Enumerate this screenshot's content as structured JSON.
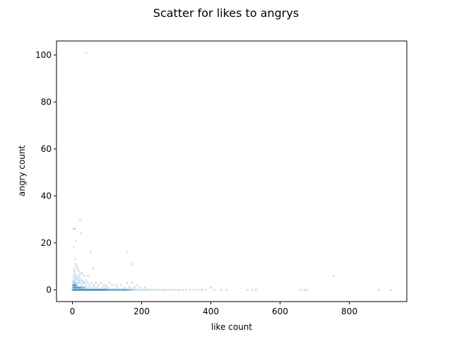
{
  "chart_data": {
    "type": "scatter",
    "title": "Scatter for likes to angrys",
    "xlabel": "like count",
    "ylabel": "angry count",
    "xlim": [
      -46,
      966
    ],
    "ylim": [
      -5,
      106
    ],
    "xticks": [
      0,
      200,
      400,
      600,
      800
    ],
    "yticks": [
      0,
      20,
      40,
      60,
      80,
      100
    ],
    "xtick_labels": [
      "0",
      "200",
      "400",
      "600",
      "800"
    ],
    "ytick_labels": [
      "0",
      "20",
      "40",
      "60",
      "80",
      "100"
    ],
    "grid": false,
    "point_color": "#1f77b4",
    "point_alpha": 0.2,
    "points": [
      [
        40,
        101
      ],
      [
        4,
        26
      ],
      [
        7,
        26
      ],
      [
        22,
        30
      ],
      [
        25,
        24
      ],
      [
        10,
        21
      ],
      [
        4,
        18
      ],
      [
        52,
        16
      ],
      [
        158,
        16
      ],
      [
        170,
        11
      ],
      [
        8,
        13
      ],
      [
        9,
        11
      ],
      [
        12,
        10
      ],
      [
        15,
        9
      ],
      [
        18,
        8
      ],
      [
        22,
        7
      ],
      [
        28,
        7
      ],
      [
        34,
        6
      ],
      [
        45,
        6
      ],
      [
        60,
        9
      ],
      [
        5,
        9
      ],
      [
        6,
        8
      ],
      [
        7,
        7
      ],
      [
        9,
        6
      ],
      [
        11,
        5
      ],
      [
        13,
        4
      ],
      [
        14,
        5
      ],
      [
        17,
        6
      ],
      [
        19,
        4
      ],
      [
        21,
        5
      ],
      [
        24,
        4
      ],
      [
        27,
        3
      ],
      [
        30,
        4
      ],
      [
        32,
        3
      ],
      [
        36,
        3
      ],
      [
        40,
        4
      ],
      [
        44,
        3
      ],
      [
        48,
        2
      ],
      [
        55,
        3
      ],
      [
        62,
        2
      ],
      [
        68,
        3
      ],
      [
        75,
        2
      ],
      [
        82,
        3
      ],
      [
        90,
        2
      ],
      [
        98,
        2
      ],
      [
        108,
        3
      ],
      [
        115,
        2
      ],
      [
        125,
        2
      ],
      [
        140,
        2
      ],
      [
        158,
        3
      ],
      [
        172,
        3
      ],
      [
        185,
        2
      ],
      [
        3,
        6
      ],
      [
        3,
        4
      ],
      [
        4,
        3
      ],
      [
        5,
        5
      ],
      [
        6,
        4
      ],
      [
        8,
        3
      ],
      [
        10,
        3
      ],
      [
        12,
        2
      ],
      [
        16,
        3
      ],
      [
        20,
        3
      ],
      [
        26,
        2
      ],
      [
        38,
        2
      ],
      [
        42,
        1
      ],
      [
        50,
        1
      ],
      [
        58,
        1
      ],
      [
        66,
        1
      ],
      [
        72,
        1
      ],
      [
        86,
        1
      ],
      [
        95,
        1
      ],
      [
        102,
        1
      ],
      [
        130,
        1
      ],
      [
        150,
        1
      ],
      [
        165,
        1
      ],
      [
        180,
        1
      ],
      [
        195,
        1
      ],
      [
        210,
        1
      ],
      [
        2,
        3
      ],
      [
        1,
        2
      ],
      [
        2,
        2
      ],
      [
        3,
        2
      ],
      [
        4,
        2
      ],
      [
        5,
        2
      ],
      [
        6,
        2
      ],
      [
        7,
        2
      ],
      [
        8,
        2
      ],
      [
        9,
        2
      ],
      [
        10,
        2
      ],
      [
        11,
        2
      ],
      [
        12,
        1
      ],
      [
        14,
        1
      ],
      [
        16,
        1
      ],
      [
        18,
        1
      ],
      [
        20,
        1
      ],
      [
        22,
        1
      ],
      [
        24,
        1
      ],
      [
        26,
        1
      ],
      [
        28,
        1
      ],
      [
        30,
        1
      ],
      [
        32,
        1
      ],
      [
        34,
        1
      ],
      [
        36,
        1
      ],
      [
        1,
        1
      ],
      [
        2,
        1
      ],
      [
        3,
        1
      ],
      [
        4,
        1
      ],
      [
        5,
        1
      ],
      [
        6,
        1
      ],
      [
        7,
        1
      ],
      [
        8,
        1
      ],
      [
        9,
        1
      ],
      [
        10,
        1
      ],
      [
        11,
        1
      ],
      [
        13,
        1
      ],
      [
        15,
        1
      ],
      [
        17,
        1
      ],
      [
        19,
        1
      ],
      [
        21,
        1
      ],
      [
        23,
        1
      ],
      [
        0,
        0
      ],
      [
        2,
        0
      ],
      [
        4,
        0
      ],
      [
        6,
        0
      ],
      [
        8,
        0
      ],
      [
        10,
        0
      ],
      [
        12,
        0
      ],
      [
        14,
        0
      ],
      [
        16,
        0
      ],
      [
        18,
        0
      ],
      [
        20,
        0
      ],
      [
        22,
        0
      ],
      [
        24,
        0
      ],
      [
        26,
        0
      ],
      [
        28,
        0
      ],
      [
        30,
        0
      ],
      [
        32,
        0
      ],
      [
        34,
        0
      ],
      [
        36,
        0
      ],
      [
        38,
        0
      ],
      [
        40,
        0
      ],
      [
        42,
        0
      ],
      [
        44,
        0
      ],
      [
        46,
        0
      ],
      [
        48,
        0
      ],
      [
        50,
        0
      ],
      [
        52,
        0
      ],
      [
        54,
        0
      ],
      [
        56,
        0
      ],
      [
        58,
        0
      ],
      [
        60,
        0
      ],
      [
        62,
        0
      ],
      [
        64,
        0
      ],
      [
        66,
        0
      ],
      [
        68,
        0
      ],
      [
        70,
        0
      ],
      [
        72,
        0
      ],
      [
        74,
        0
      ],
      [
        76,
        0
      ],
      [
        78,
        0
      ],
      [
        80,
        0
      ],
      [
        82,
        0
      ],
      [
        84,
        0
      ],
      [
        86,
        0
      ],
      [
        88,
        0
      ],
      [
        90,
        0
      ],
      [
        92,
        0
      ],
      [
        94,
        0
      ],
      [
        96,
        0
      ],
      [
        98,
        0
      ],
      [
        100,
        0
      ],
      [
        103,
        0
      ],
      [
        106,
        0
      ],
      [
        109,
        0
      ],
      [
        112,
        0
      ],
      [
        115,
        0
      ],
      [
        118,
        0
      ],
      [
        121,
        0
      ],
      [
        124,
        0
      ],
      [
        127,
        0
      ],
      [
        130,
        0
      ],
      [
        133,
        0
      ],
      [
        136,
        0
      ],
      [
        139,
        0
      ],
      [
        142,
        0
      ],
      [
        145,
        0
      ],
      [
        148,
        0
      ],
      [
        151,
        0
      ],
      [
        154,
        0
      ],
      [
        157,
        0
      ],
      [
        160,
        0
      ],
      [
        164,
        0
      ],
      [
        168,
        0
      ],
      [
        172,
        0
      ],
      [
        176,
        0
      ],
      [
        180,
        0
      ],
      [
        185,
        0
      ],
      [
        190,
        0
      ],
      [
        195,
        0
      ],
      [
        200,
        0
      ],
      [
        205,
        0
      ],
      [
        210,
        0
      ],
      [
        216,
        0
      ],
      [
        222,
        0
      ],
      [
        228,
        0
      ],
      [
        235,
        0
      ],
      [
        242,
        0
      ],
      [
        250,
        0
      ],
      [
        258,
        0
      ],
      [
        265,
        0
      ],
      [
        272,
        0
      ],
      [
        280,
        0
      ],
      [
        288,
        0
      ],
      [
        296,
        0
      ],
      [
        305,
        0
      ],
      [
        312,
        0
      ],
      [
        320,
        0
      ],
      [
        330,
        0
      ],
      [
        340,
        0
      ],
      [
        350,
        0
      ],
      [
        360,
        0
      ],
      [
        368,
        0
      ],
      [
        375,
        0
      ],
      [
        385,
        0
      ],
      [
        400,
        1
      ],
      [
        410,
        0
      ],
      [
        430,
        0
      ],
      [
        445,
        0
      ],
      [
        505,
        0
      ],
      [
        520,
        0
      ],
      [
        530,
        0
      ],
      [
        660,
        0
      ],
      [
        670,
        0
      ],
      [
        678,
        0
      ],
      [
        755,
        6
      ],
      [
        885,
        0
      ],
      [
        920,
        0
      ],
      [
        1,
        0
      ],
      [
        3,
        0
      ],
      [
        5,
        0
      ],
      [
        7,
        0
      ],
      [
        9,
        0
      ],
      [
        11,
        0
      ],
      [
        13,
        0
      ],
      [
        15,
        0
      ],
      [
        17,
        0
      ],
      [
        19,
        0
      ],
      [
        21,
        0
      ],
      [
        23,
        0
      ],
      [
        25,
        0
      ],
      [
        27,
        0
      ],
      [
        29,
        0
      ],
      [
        31,
        0
      ],
      [
        33,
        0
      ],
      [
        35,
        0
      ],
      [
        37,
        0
      ],
      [
        39,
        0
      ],
      [
        41,
        0
      ],
      [
        43,
        0
      ],
      [
        45,
        0
      ],
      [
        47,
        0
      ],
      [
        49,
        0
      ],
      [
        51,
        0
      ],
      [
        53,
        0
      ],
      [
        55,
        0
      ],
      [
        57,
        0
      ],
      [
        59,
        0
      ],
      [
        61,
        0
      ],
      [
        63,
        0
      ],
      [
        65,
        0
      ],
      [
        67,
        0
      ],
      [
        69,
        0
      ],
      [
        71,
        0
      ],
      [
        73,
        0
      ],
      [
        75,
        0
      ],
      [
        77,
        0
      ],
      [
        79,
        0
      ],
      [
        81,
        0
      ],
      [
        83,
        0
      ],
      [
        85,
        0
      ],
      [
        87,
        0
      ],
      [
        89,
        0
      ],
      [
        91,
        0
      ],
      [
        93,
        0
      ],
      [
        95,
        0
      ],
      [
        97,
        0
      ],
      [
        99,
        0
      ],
      [
        101,
        0
      ],
      [
        104,
        0
      ],
      [
        107,
        0
      ],
      [
        110,
        0
      ],
      [
        113,
        0
      ],
      [
        116,
        0
      ],
      [
        119,
        0
      ],
      [
        122,
        0
      ],
      [
        125,
        0
      ],
      [
        128,
        0
      ],
      [
        131,
        0
      ],
      [
        134,
        0
      ],
      [
        137,
        0
      ],
      [
        140,
        0
      ],
      [
        143,
        0
      ],
      [
        146,
        0
      ],
      [
        149,
        0
      ],
      [
        152,
        0
      ],
      [
        155,
        0
      ],
      [
        158,
        0
      ],
      [
        162,
        0
      ],
      [
        166,
        0
      ],
      [
        170,
        0
      ]
    ]
  }
}
